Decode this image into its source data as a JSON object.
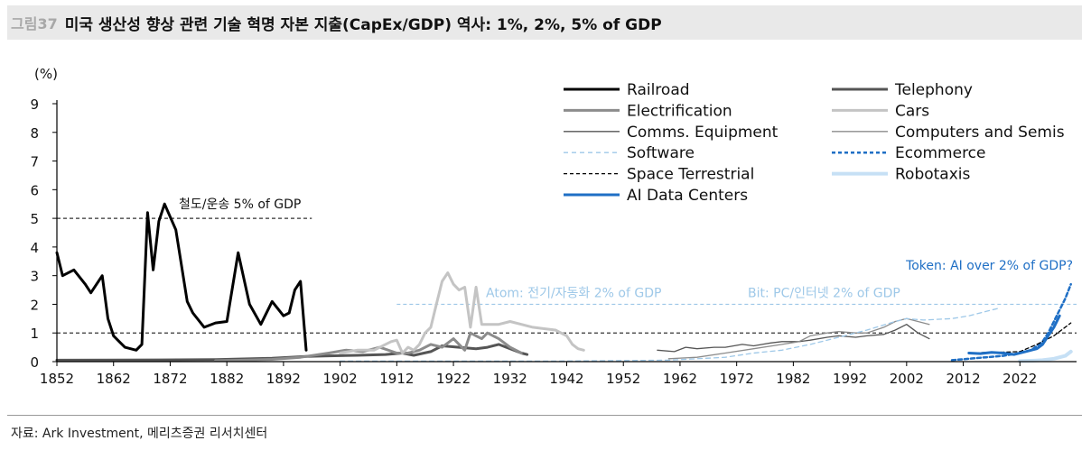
{
  "figure": {
    "number": "그림37",
    "title": "미국 생산성 향상 관련 기술 혁명 자본 지출(CapEx/GDP) 역사: 1%, 2%, 5% of GDP",
    "source": "자료: Ark Investment, 메리츠증권 리서치센터"
  },
  "colors": {
    "black": "#000000",
    "dark_gray": "#555555",
    "mid_gray": "#8c8c8c",
    "light_gray": "#c4c4c4",
    "light_blue": "#9ec8e8",
    "blue": "#1f6fc5",
    "pale_blue": "#c6e0f5"
  },
  "chart_data": {
    "type": "line",
    "ylabel": "(%)",
    "ylim": [
      0,
      9
    ],
    "yticks": [
      "0",
      "1",
      "2",
      "3",
      "4",
      "5",
      "6",
      "7",
      "8",
      "9"
    ],
    "xlim": [
      1852,
      2032
    ],
    "xticks": [
      "1852",
      "1862",
      "1872",
      "1882",
      "1892",
      "1902",
      "1912",
      "1922",
      "1932",
      "1942",
      "1952",
      "1962",
      "1972",
      "1982",
      "1992",
      "2002",
      "2012",
      "2022"
    ],
    "legend_position": "top-right",
    "reference_lines": [
      {
        "y": 5,
        "x_range": [
          1852,
          1897
        ],
        "label": "철도/운송 5% of GDP"
      },
      {
        "y": 2,
        "x_range": [
          1912,
          2032
        ],
        "label": "Atom: 전기/자동화 2% of GDP"
      },
      {
        "y": 2,
        "x_range": [
          1912,
          2032
        ],
        "label": "Bit: PC/인터넷 2% of GDP"
      },
      {
        "y": 1,
        "x_range": [
          1852,
          2032
        ],
        "label": ""
      }
    ],
    "annotations": [
      {
        "text": "Token: AI over 2% of GDP?"
      }
    ],
    "series": [
      {
        "name": "Railroad",
        "color": "#000000",
        "width": 3,
        "dash": "",
        "x": [
          1852,
          1853,
          1855,
          1857,
          1858,
          1860,
          1861,
          1862,
          1863,
          1864,
          1866,
          1867,
          1868,
          1869,
          1870,
          1871,
          1873,
          1875,
          1876,
          1878,
          1880,
          1882,
          1884,
          1886,
          1888,
          1890,
          1892,
          1893,
          1894,
          1895,
          1896
        ],
        "y": [
          3.8,
          3.0,
          3.2,
          2.7,
          2.4,
          3.0,
          1.5,
          0.9,
          0.7,
          0.5,
          0.4,
          0.6,
          5.2,
          3.2,
          4.9,
          5.5,
          4.6,
          2.1,
          1.7,
          1.2,
          1.35,
          1.4,
          3.8,
          2.0,
          1.3,
          2.1,
          1.6,
          1.7,
          2.5,
          2.8,
          0.4
        ]
      },
      {
        "name": "Telephony",
        "color": "#555555",
        "width": 3,
        "dash": "",
        "x": [
          1852,
          1870,
          1880,
          1890,
          1896,
          1900,
          1905,
          1910,
          1913,
          1915,
          1918,
          1920,
          1923,
          1926,
          1928,
          1930,
          1932,
          1934,
          1935
        ],
        "y": [
          0.05,
          0.06,
          0.07,
          0.12,
          0.18,
          0.2,
          0.22,
          0.25,
          0.3,
          0.22,
          0.35,
          0.55,
          0.5,
          0.45,
          0.5,
          0.6,
          0.45,
          0.3,
          0.25
        ]
      },
      {
        "name": "Electrification",
        "color": "#8c8c8c",
        "width": 3,
        "dash": "",
        "x": [
          1880,
          1885,
          1890,
          1895,
          1900,
          1903,
          1906,
          1909,
          1912,
          1914,
          1916,
          1918,
          1920,
          1922,
          1924,
          1925,
          1926,
          1927,
          1928,
          1929,
          1930,
          1932,
          1934
        ],
        "y": [
          0.03,
          0.05,
          0.08,
          0.15,
          0.3,
          0.4,
          0.35,
          0.5,
          0.3,
          0.3,
          0.4,
          0.6,
          0.5,
          0.8,
          0.4,
          1.0,
          0.9,
          0.8,
          1.0,
          0.9,
          0.8,
          0.5,
          0.3
        ]
      },
      {
        "name": "Cars",
        "color": "#c4c4c4",
        "width": 3,
        "dash": "",
        "x": [
          1902,
          1905,
          1908,
          1910,
          1911,
          1912,
          1913,
          1914,
          1915,
          1916,
          1917,
          1918,
          1919,
          1920,
          1921,
          1922,
          1923,
          1924,
          1925,
          1926,
          1927,
          1928,
          1930,
          1932,
          1934,
          1936,
          1938,
          1940,
          1942,
          1943,
          1944,
          1945
        ],
        "y": [
          0.3,
          0.4,
          0.4,
          0.6,
          0.7,
          0.75,
          0.3,
          0.5,
          0.4,
          0.6,
          1.0,
          1.2,
          2.0,
          2.8,
          3.1,
          2.7,
          2.5,
          2.6,
          1.2,
          2.6,
          1.3,
          1.3,
          1.3,
          1.4,
          1.3,
          1.2,
          1.15,
          1.1,
          0.9,
          0.6,
          0.45,
          0.4
        ]
      },
      {
        "name": "Comms. Equipment",
        "color": "#555555",
        "width": 1.3,
        "dash": "",
        "x": [
          1958,
          1961,
          1963,
          1965,
          1968,
          1970,
          1973,
          1975,
          1978,
          1980,
          1983,
          1985,
          1988,
          1990,
          1993,
          1995,
          1998,
          2000,
          2002,
          2004,
          2006
        ],
        "y": [
          0.4,
          0.35,
          0.5,
          0.45,
          0.5,
          0.5,
          0.6,
          0.55,
          0.65,
          0.7,
          0.7,
          0.75,
          0.85,
          0.9,
          0.85,
          0.9,
          0.95,
          1.1,
          1.3,
          1.0,
          0.8
        ]
      },
      {
        "name": "Computers and Semis",
        "color": "#8c8c8c",
        "width": 1.3,
        "dash": "",
        "x": [
          1960,
          1965,
          1970,
          1975,
          1980,
          1983,
          1985,
          1988,
          1990,
          1993,
          1995,
          1998,
          2000,
          2002,
          2004,
          2006
        ],
        "y": [
          0.1,
          0.15,
          0.3,
          0.45,
          0.6,
          0.7,
          0.9,
          1.0,
          1.05,
          1.0,
          1.0,
          1.2,
          1.4,
          1.5,
          1.4,
          1.3
        ]
      },
      {
        "name": "Software",
        "color": "#9ec8e8",
        "width": 1.3,
        "dash": "5,4",
        "x": [
          1902,
          1920,
          1940,
          1960,
          1970,
          1975,
          1980,
          1985,
          1990,
          1995,
          2000,
          2002,
          2005,
          2010,
          2013,
          2015,
          2018
        ],
        "y": [
          0.02,
          0.02,
          0.02,
          0.05,
          0.15,
          0.3,
          0.4,
          0.6,
          0.85,
          1.1,
          1.4,
          1.5,
          1.45,
          1.5,
          1.6,
          1.7,
          1.85
        ]
      },
      {
        "name": "Ecommerce",
        "color": "#1f6fc5",
        "width": 2.5,
        "dash": "4,3",
        "x": [
          2010,
          2013,
          2016,
          2019,
          2022,
          2024,
          2026,
          2027,
          2028,
          2029,
          2030,
          2031
        ],
        "y": [
          0.05,
          0.1,
          0.15,
          0.2,
          0.3,
          0.4,
          0.7,
          1.0,
          1.4,
          1.8,
          2.2,
          2.7
        ]
      },
      {
        "name": "Space Terrestrial",
        "color": "#000000",
        "width": 1.3,
        "dash": "4,3",
        "x": [
          2013,
          2016,
          2019,
          2022,
          2025,
          2028,
          2031
        ],
        "y": [
          0.3,
          0.32,
          0.33,
          0.35,
          0.6,
          0.9,
          1.35
        ]
      },
      {
        "name": "Robotaxis",
        "color": "#c6e0f5",
        "width": 4,
        "dash": "",
        "x": [
          2022,
          2024,
          2026,
          2028,
          2030,
          2031
        ],
        "y": [
          0.02,
          0.03,
          0.05,
          0.1,
          0.2,
          0.35
        ]
      },
      {
        "name": "AI Data Centers",
        "color": "#1f6fc5",
        "width": 3,
        "dash": "",
        "x": [
          2013,
          2015,
          2017,
          2019,
          2021,
          2023,
          2025,
          2026,
          2027,
          2028,
          2029
        ],
        "y": [
          0.3,
          0.28,
          0.32,
          0.3,
          0.25,
          0.35,
          0.45,
          0.6,
          0.9,
          1.2,
          1.6
        ]
      }
    ]
  }
}
